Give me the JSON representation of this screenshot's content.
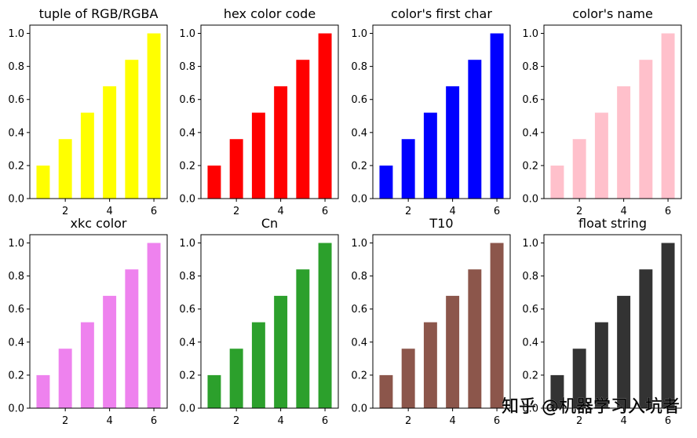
{
  "chart_data": [
    {
      "type": "bar",
      "title": "tuple of RGB/RGBA",
      "color": "#ffff00",
      "x": [
        1,
        2,
        3,
        4,
        5,
        6
      ],
      "values": [
        0.2,
        0.36,
        0.52,
        0.68,
        0.84,
        1.0
      ],
      "xlim": [
        0.4,
        6.6
      ],
      "ylim": [
        0,
        1.05
      ],
      "xticks": [
        2,
        4,
        6
      ],
      "yticks": [
        0.0,
        0.2,
        0.4,
        0.6,
        0.8,
        1.0
      ]
    },
    {
      "type": "bar",
      "title": "hex color code",
      "color": "#ff0000",
      "x": [
        1,
        2,
        3,
        4,
        5,
        6
      ],
      "values": [
        0.2,
        0.36,
        0.52,
        0.68,
        0.84,
        1.0
      ],
      "xlim": [
        0.4,
        6.6
      ],
      "ylim": [
        0,
        1.05
      ],
      "xticks": [
        2,
        4,
        6
      ],
      "yticks": [
        0.0,
        0.2,
        0.4,
        0.6,
        0.8,
        1.0
      ]
    },
    {
      "type": "bar",
      "title": "color's first char",
      "color": "#0000ff",
      "x": [
        1,
        2,
        3,
        4,
        5,
        6
      ],
      "values": [
        0.2,
        0.36,
        0.52,
        0.68,
        0.84,
        1.0
      ],
      "xlim": [
        0.4,
        6.6
      ],
      "ylim": [
        0,
        1.05
      ],
      "xticks": [
        2,
        4,
        6
      ],
      "yticks": [
        0.0,
        0.2,
        0.4,
        0.6,
        0.8,
        1.0
      ]
    },
    {
      "type": "bar",
      "title": "color's name",
      "color": "#ffc0cb",
      "x": [
        1,
        2,
        3,
        4,
        5,
        6
      ],
      "values": [
        0.2,
        0.36,
        0.52,
        0.68,
        0.84,
        1.0
      ],
      "xlim": [
        0.4,
        6.6
      ],
      "ylim": [
        0,
        1.05
      ],
      "xticks": [
        2,
        4,
        6
      ],
      "yticks": [
        0.0,
        0.2,
        0.4,
        0.6,
        0.8,
        1.0
      ]
    },
    {
      "type": "bar",
      "title": "xkc color",
      "color": "#ee82ee",
      "x": [
        1,
        2,
        3,
        4,
        5,
        6
      ],
      "values": [
        0.2,
        0.36,
        0.52,
        0.68,
        0.84,
        1.0
      ],
      "xlim": [
        0.4,
        6.6
      ],
      "ylim": [
        0,
        1.05
      ],
      "xticks": [
        2,
        4,
        6
      ],
      "yticks": [
        0.0,
        0.2,
        0.4,
        0.6,
        0.8,
        1.0
      ]
    },
    {
      "type": "bar",
      "title": "Cn",
      "color": "#2ca02c",
      "x": [
        1,
        2,
        3,
        4,
        5,
        6
      ],
      "values": [
        0.2,
        0.36,
        0.52,
        0.68,
        0.84,
        1.0
      ],
      "xlim": [
        0.4,
        6.6
      ],
      "ylim": [
        0,
        1.05
      ],
      "xticks": [
        2,
        4,
        6
      ],
      "yticks": [
        0.0,
        0.2,
        0.4,
        0.6,
        0.8,
        1.0
      ]
    },
    {
      "type": "bar",
      "title": "T10",
      "color": "#8c564b",
      "x": [
        1,
        2,
        3,
        4,
        5,
        6
      ],
      "values": [
        0.2,
        0.36,
        0.52,
        0.68,
        0.84,
        1.0
      ],
      "xlim": [
        0.4,
        6.6
      ],
      "ylim": [
        0,
        1.05
      ],
      "xticks": [
        2,
        4,
        6
      ],
      "yticks": [
        0.0,
        0.2,
        0.4,
        0.6,
        0.8,
        1.0
      ]
    },
    {
      "type": "bar",
      "title": "float string",
      "color": "#333333",
      "x": [
        1,
        2,
        3,
        4,
        5,
        6
      ],
      "values": [
        0.2,
        0.36,
        0.52,
        0.68,
        0.84,
        1.0
      ],
      "xlim": [
        0.4,
        6.6
      ],
      "ylim": [
        0,
        1.05
      ],
      "xticks": [
        2,
        4,
        6
      ],
      "yticks": [
        0.0,
        0.2,
        0.4,
        0.6,
        0.8,
        1.0
      ]
    }
  ],
  "watermark": "知乎 @机器学习入坑者"
}
